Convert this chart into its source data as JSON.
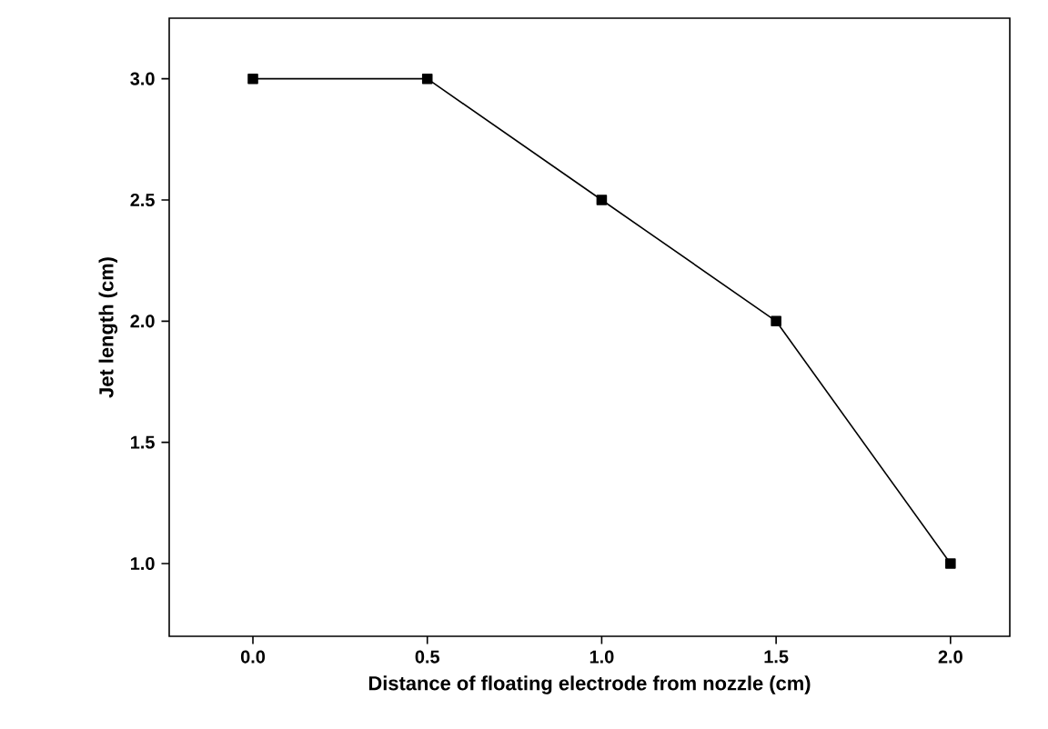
{
  "chart_data": {
    "type": "line",
    "xlabel": "Distance of floating electrode from nozzle (cm)",
    "ylabel": "Jet length (cm)",
    "x": [
      0.0,
      0.5,
      1.0,
      1.5,
      2.0
    ],
    "series": [
      {
        "color": "#000000",
        "values": [
          3.0,
          3.0,
          2.5,
          2.0,
          1.0
        ]
      }
    ],
    "xlim": [
      -0.24,
      2.17
    ],
    "ylim": [
      0.7,
      3.25
    ],
    "xticks": [
      {
        "value": 0.0,
        "label": "0.0"
      },
      {
        "value": 0.5,
        "label": "0.5"
      },
      {
        "value": 1.0,
        "label": "1.0"
      },
      {
        "value": 1.5,
        "label": "1.5"
      },
      {
        "value": 2.0,
        "label": "2.0"
      }
    ],
    "yticks": [
      {
        "value": 1.0,
        "label": "1.0"
      },
      {
        "value": 1.5,
        "label": "1.5"
      },
      {
        "value": 2.0,
        "label": "2.0"
      },
      {
        "value": 2.5,
        "label": "2.5"
      },
      {
        "value": 3.0,
        "label": "3.0"
      }
    ],
    "marker": "square",
    "line_style": "solid"
  }
}
